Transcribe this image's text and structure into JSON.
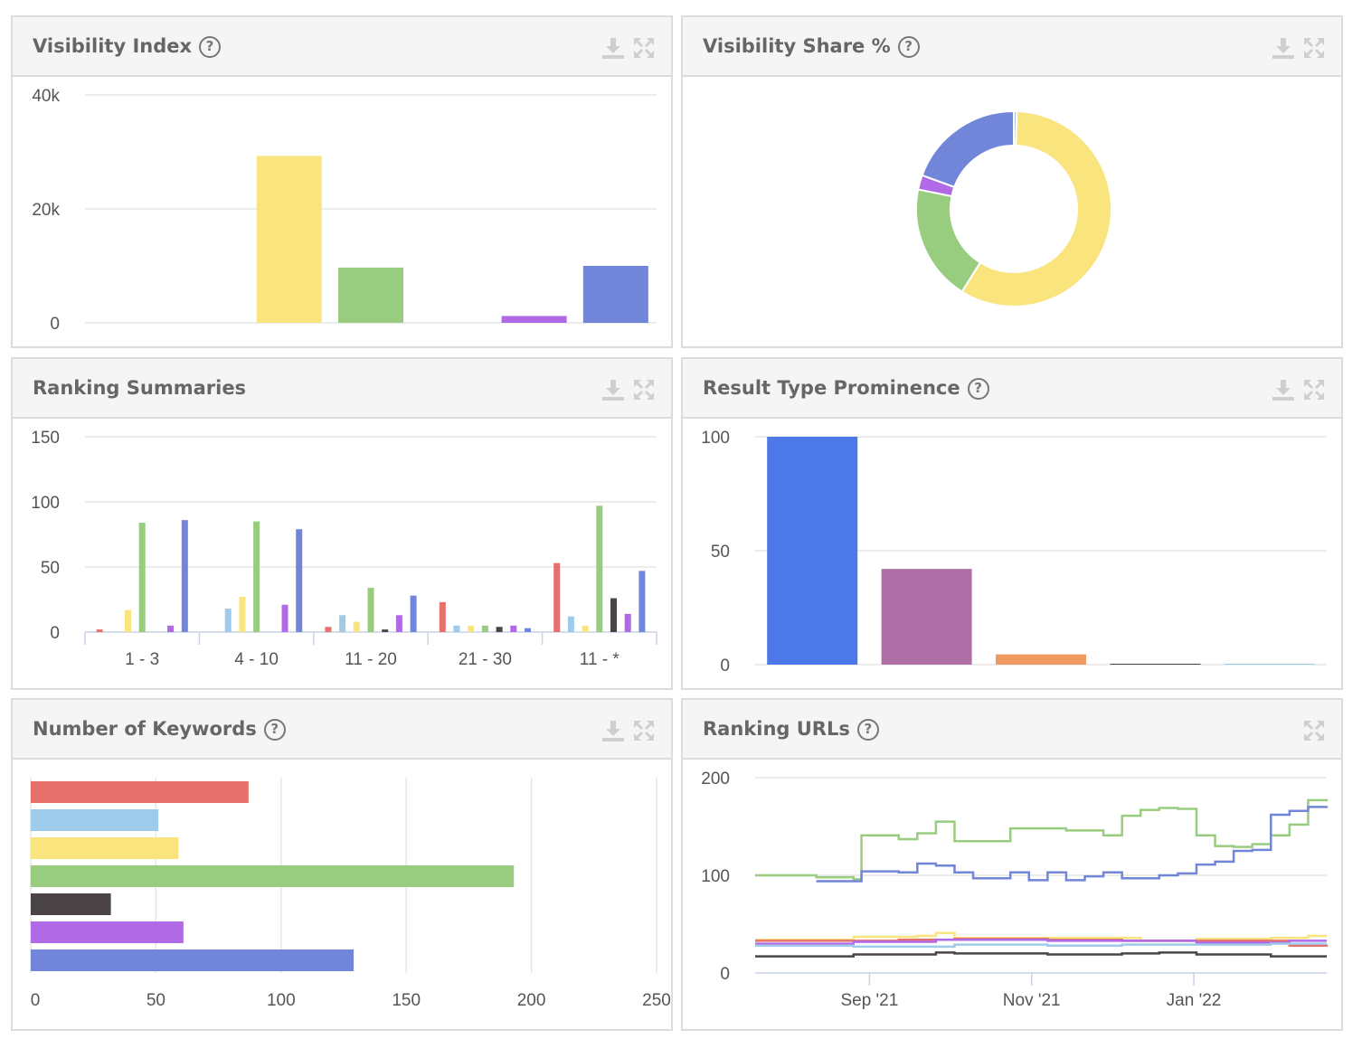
{
  "panels": {
    "visibility_index": {
      "title": "Visibility Index",
      "has_help": true
    },
    "visibility_share": {
      "title": "Visibility Share %",
      "has_help": true
    },
    "ranking_summaries": {
      "title": "Ranking Summaries",
      "has_help": false
    },
    "result_type_prominence": {
      "title": "Result Type Prominence",
      "has_help": true
    },
    "number_of_keywords": {
      "title": "Number of Keywords",
      "has_help": true
    },
    "ranking_urls": {
      "title": "Ranking URLs",
      "has_help": true
    }
  },
  "icons": {
    "help": "question-circle-icon",
    "download": "download-icon",
    "expand": "expand-icon",
    "help_glyph": "?"
  },
  "colors": {
    "red": "#e8706c",
    "lightblue": "#9fcbea",
    "yellow": "#f9e47e",
    "green": "#98cd7f",
    "dark": "#4a4447",
    "purple": "#b06ae6",
    "blue": "#7186d8",
    "result_blue": "#4c78e8",
    "result_purple": "#b06ea6",
    "result_orange": "#ee9a60"
  },
  "chart_data": [
    {
      "id": "visibility_index",
      "type": "bar",
      "ylim": [
        0,
        40000
      ],
      "yticks": [
        "0",
        "20k",
        "40k"
      ],
      "yticks_values": [
        0,
        20000,
        40000
      ],
      "categories": [
        "",
        "",
        "",
        "",
        "",
        "",
        ""
      ],
      "values": [
        0,
        0,
        29300,
        9700,
        0,
        1200,
        10000
      ],
      "colors": [
        "red",
        "lightblue",
        "yellow",
        "green",
        "dark",
        "purple",
        "blue"
      ],
      "grid": true
    },
    {
      "id": "visibility_share",
      "type": "pie",
      "donut": true,
      "values": [
        0.5,
        58.4,
        19.3,
        2.4,
        19.4
      ],
      "colors": [
        "lightblue",
        "yellow",
        "green",
        "purple",
        "blue"
      ]
    },
    {
      "id": "ranking_summaries",
      "type": "bar",
      "ylim": [
        0,
        150
      ],
      "yticks": [
        "0",
        "50",
        "100",
        "150"
      ],
      "yticks_values": [
        0,
        50,
        100,
        150
      ],
      "categories": [
        "1 - 3",
        "4 - 10",
        "11 - 20",
        "21 - 30",
        "11 - *"
      ],
      "series": [
        {
          "color": "red",
          "values": [
            2,
            0,
            4,
            23,
            53
          ]
        },
        {
          "color": "lightblue",
          "values": [
            0,
            18,
            13,
            5,
            12
          ]
        },
        {
          "color": "yellow",
          "values": [
            17,
            27,
            8,
            5,
            5
          ]
        },
        {
          "color": "green",
          "values": [
            84,
            85,
            34,
            5,
            97
          ]
        },
        {
          "color": "dark",
          "values": [
            0,
            0,
            2,
            4,
            26
          ]
        },
        {
          "color": "purple",
          "values": [
            5,
            21,
            13,
            5,
            14
          ]
        },
        {
          "color": "blue",
          "values": [
            86,
            79,
            28,
            3,
            47
          ]
        }
      ],
      "grid": true
    },
    {
      "id": "result_type_prominence",
      "type": "bar",
      "ylim": [
        0,
        100
      ],
      "yticks": [
        "0",
        "50",
        "100"
      ],
      "yticks_values": [
        0,
        50,
        100
      ],
      "categories": [
        "",
        "",
        "",
        "",
        ""
      ],
      "values": [
        100,
        42,
        4.5,
        0.4,
        0.2
      ],
      "colors": [
        "result_blue",
        "result_purple",
        "result_orange",
        "dark",
        "lightblue"
      ],
      "grid": true
    },
    {
      "id": "number_of_keywords",
      "type": "bar",
      "orientation": "horizontal",
      "xlim": [
        0,
        250
      ],
      "xticks": [
        "0",
        "50",
        "100",
        "150",
        "200",
        "250"
      ],
      "xticks_values": [
        0,
        50,
        100,
        150,
        200,
        250
      ],
      "values": [
        87,
        51,
        59,
        193,
        32,
        61,
        129
      ],
      "colors": [
        "red",
        "lightblue",
        "yellow",
        "green",
        "dark",
        "purple",
        "blue"
      ],
      "grid": true
    },
    {
      "id": "ranking_urls",
      "type": "line",
      "ylim": [
        0,
        200
      ],
      "yticks": [
        "0",
        "100",
        "200"
      ],
      "yticks_values": [
        0,
        100,
        200
      ],
      "x_start": "2021-07-20",
      "x_end": "2022-02-20",
      "xticks": [
        {
          "label": "Sep '21",
          "date": "2021-09-01"
        },
        {
          "label": "Nov '21",
          "date": "2021-11-01"
        },
        {
          "label": "Jan '22",
          "date": "2022-01-01"
        }
      ],
      "series": [
        {
          "color": "green",
          "points": [
            [
              "2021-07-20",
              100
            ],
            [
              "2021-08-12",
              98
            ],
            [
              "2021-08-26",
              96
            ],
            [
              "2021-08-29",
              141
            ],
            [
              "2021-09-12",
              137
            ],
            [
              "2021-09-19",
              143
            ],
            [
              "2021-09-26",
              155
            ],
            [
              "2021-10-03",
              135
            ],
            [
              "2021-10-24",
              148
            ],
            [
              "2021-11-14",
              146
            ],
            [
              "2021-11-28",
              141
            ],
            [
              "2021-12-05",
              161
            ],
            [
              "2021-12-12",
              167
            ],
            [
              "2021-12-19",
              169
            ],
            [
              "2021-12-26",
              168
            ],
            [
              "2022-01-02",
              141
            ],
            [
              "2022-01-09",
              130
            ],
            [
              "2022-01-16",
              129
            ],
            [
              "2022-01-23",
              132
            ],
            [
              "2022-01-30",
              141
            ],
            [
              "2022-02-06",
              152
            ],
            [
              "2022-02-13",
              177
            ],
            [
              "2022-02-20",
              178
            ]
          ]
        },
        {
          "color": "blue",
          "points": [
            [
              "2021-08-12",
              94
            ],
            [
              "2021-08-26",
              94
            ],
            [
              "2021-08-29",
              104
            ],
            [
              "2021-09-12",
              103
            ],
            [
              "2021-09-19",
              112
            ],
            [
              "2021-09-26",
              110
            ],
            [
              "2021-10-03",
              103
            ],
            [
              "2021-10-10",
              97
            ],
            [
              "2021-10-17",
              97
            ],
            [
              "2021-10-24",
              103
            ],
            [
              "2021-10-31",
              95
            ],
            [
              "2021-11-07",
              103
            ],
            [
              "2021-11-14",
              95
            ],
            [
              "2021-11-21",
              99
            ],
            [
              "2021-11-28",
              103
            ],
            [
              "2021-12-05",
              97
            ],
            [
              "2021-12-12",
              97
            ],
            [
              "2021-12-19",
              100
            ],
            [
              "2021-12-26",
              102
            ],
            [
              "2022-01-02",
              111
            ],
            [
              "2022-01-09",
              114
            ],
            [
              "2022-01-16",
              125
            ],
            [
              "2022-01-23",
              126
            ],
            [
              "2022-01-30",
              162
            ],
            [
              "2022-02-06",
              166
            ],
            [
              "2022-02-13",
              170
            ],
            [
              "2022-02-20",
              171
            ]
          ]
        },
        {
          "color": "yellow",
          "points": [
            [
              "2021-07-20",
              34
            ],
            [
              "2021-08-12",
              34
            ],
            [
              "2021-08-26",
              37
            ],
            [
              "2021-09-19",
              38
            ],
            [
              "2021-09-26",
              41
            ],
            [
              "2021-10-03",
              36
            ],
            [
              "2021-11-07",
              36
            ],
            [
              "2021-12-05",
              36
            ],
            [
              "2021-12-12",
              33
            ],
            [
              "2022-01-02",
              35
            ],
            [
              "2022-01-30",
              36
            ],
            [
              "2022-02-13",
              38
            ],
            [
              "2022-02-20",
              38
            ]
          ]
        },
        {
          "color": "red",
          "points": [
            [
              "2021-07-20",
              33
            ],
            [
              "2021-08-12",
              33
            ],
            [
              "2021-08-26",
              33
            ],
            [
              "2021-09-12",
              34
            ],
            [
              "2021-10-03",
              35
            ],
            [
              "2021-11-07",
              34
            ],
            [
              "2021-12-05",
              33
            ],
            [
              "2022-01-02",
              33
            ],
            [
              "2022-01-30",
              33
            ],
            [
              "2022-02-06",
              28
            ],
            [
              "2022-02-20",
              27
            ]
          ]
        },
        {
          "color": "purple",
          "points": [
            [
              "2021-07-20",
              30
            ],
            [
              "2021-08-12",
              30
            ],
            [
              "2021-08-26",
              32
            ],
            [
              "2021-09-12",
              32
            ],
            [
              "2021-09-26",
              34
            ],
            [
              "2021-11-07",
              33
            ],
            [
              "2021-12-05",
              33
            ],
            [
              "2022-01-02",
              31
            ],
            [
              "2022-02-06",
              33
            ],
            [
              "2022-02-20",
              33
            ]
          ]
        },
        {
          "color": "lightblue",
          "points": [
            [
              "2021-07-20",
              28
            ],
            [
              "2021-08-12",
              28
            ],
            [
              "2021-08-26",
              27
            ],
            [
              "2021-09-12",
              27
            ],
            [
              "2021-10-03",
              29
            ],
            [
              "2021-11-07",
              28
            ],
            [
              "2021-12-05",
              29
            ],
            [
              "2022-01-02",
              29
            ],
            [
              "2022-01-30",
              30
            ],
            [
              "2022-02-20",
              30
            ]
          ]
        },
        {
          "color": "dark",
          "points": [
            [
              "2021-07-20",
              17
            ],
            [
              "2021-08-12",
              17
            ],
            [
              "2021-08-26",
              19
            ],
            [
              "2021-09-12",
              19
            ],
            [
              "2021-09-26",
              21
            ],
            [
              "2021-10-03",
              20
            ],
            [
              "2021-11-07",
              19
            ],
            [
              "2021-12-05",
              20
            ],
            [
              "2021-12-19",
              21
            ],
            [
              "2022-01-02",
              19
            ],
            [
              "2022-01-30",
              17
            ],
            [
              "2022-02-20",
              17
            ]
          ]
        }
      ],
      "grid": true
    }
  ]
}
